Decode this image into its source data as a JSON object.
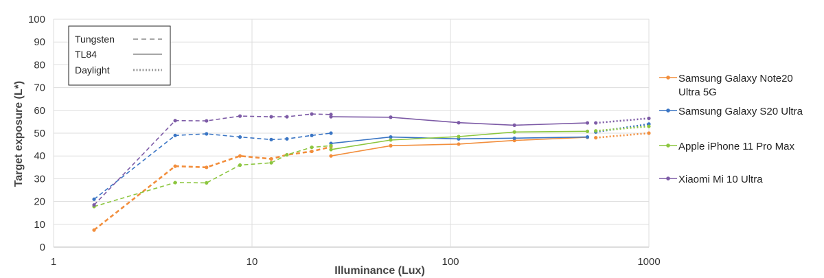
{
  "chart_data": {
    "type": "line",
    "xlabel": "Illuminance (Lux)",
    "ylabel": "Target exposure (L*)",
    "xscale": "log",
    "xlim": [
      1,
      1000
    ],
    "ylim": [
      0,
      100
    ],
    "xticks": [
      "1",
      "10",
      "100",
      "1000"
    ],
    "yticks": [
      "0",
      "10",
      "20",
      "30",
      "40",
      "50",
      "60",
      "70",
      "80",
      "90",
      "100"
    ],
    "grid": "vertical at decades, horizontal every 10",
    "line_style_legend": [
      {
        "name": "Tungsten",
        "style": "dashed"
      },
      {
        "name": "TL84",
        "style": "solid"
      },
      {
        "name": "Daylight",
        "style": "dotted"
      }
    ],
    "legend_position": "right",
    "series": [
      {
        "name": "Samsung Galaxy Note20 Ultra 5G",
        "color": "#f28e3c",
        "tungsten": [
          [
            1.6,
            7.5
          ],
          [
            4.1,
            35.5
          ],
          [
            5.9,
            35
          ],
          [
            8.7,
            40
          ],
          [
            12.5,
            38.7
          ],
          [
            15,
            40.5
          ],
          [
            20,
            42
          ],
          [
            25,
            44
          ]
        ],
        "tl84": [
          [
            25,
            40
          ],
          [
            50,
            44.5
          ],
          [
            110,
            45.2
          ],
          [
            210,
            46.8
          ],
          [
            490,
            48.2
          ]
        ],
        "daylight": [
          [
            540,
            48
          ],
          [
            1000,
            50
          ]
        ]
      },
      {
        "name": "Samsung Galaxy S20 Ultra",
        "color": "#3a75c4",
        "tungsten": [
          [
            1.6,
            21
          ],
          [
            4.1,
            49
          ],
          [
            5.9,
            49.7
          ],
          [
            8.7,
            48.3
          ],
          [
            12.5,
            47.2
          ],
          [
            15,
            47.5
          ],
          [
            20,
            49
          ],
          [
            25,
            50
          ]
        ],
        "tl84": [
          [
            25,
            45.5
          ],
          [
            50,
            48.3
          ],
          [
            110,
            47.5
          ],
          [
            210,
            47.8
          ],
          [
            490,
            48.3
          ]
        ],
        "daylight": [
          [
            540,
            50.5
          ],
          [
            1000,
            54
          ]
        ]
      },
      {
        "name": "Apple iPhone 11 Pro Max",
        "color": "#8cc63f",
        "tungsten": [
          [
            1.6,
            17.8
          ],
          [
            4.1,
            28.3
          ],
          [
            5.9,
            28.2
          ],
          [
            8.7,
            36
          ],
          [
            12.5,
            37
          ],
          [
            15,
            40.5
          ],
          [
            20,
            43.8
          ],
          [
            25,
            44.5
          ]
        ],
        "tl84": [
          [
            25,
            42.8
          ],
          [
            50,
            47
          ],
          [
            110,
            48.5
          ],
          [
            210,
            50.5
          ],
          [
            490,
            50.8
          ]
        ],
        "daylight": [
          [
            540,
            51
          ],
          [
            1000,
            53
          ]
        ]
      },
      {
        "name": "Xiaomi Mi 10 Ultra",
        "color": "#7d5ba6",
        "tungsten": [
          [
            1.6,
            18.5
          ],
          [
            4.1,
            55.5
          ],
          [
            5.9,
            55.4
          ],
          [
            8.7,
            57.5
          ],
          [
            12.5,
            57.2
          ],
          [
            15,
            57.2
          ],
          [
            20,
            58.4
          ],
          [
            25,
            58.2
          ]
        ],
        "tl84": [
          [
            25,
            57.2
          ],
          [
            50,
            57
          ],
          [
            110,
            54.6
          ],
          [
            210,
            53.5
          ],
          [
            490,
            54.5
          ]
        ],
        "daylight": [
          [
            540,
            54.5
          ],
          [
            1000,
            56.5
          ]
        ]
      }
    ]
  }
}
